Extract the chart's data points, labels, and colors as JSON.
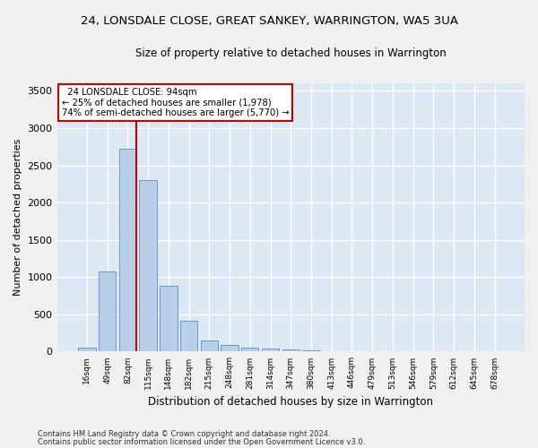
{
  "title_line1": "24, LONSDALE CLOSE, GREAT SANKEY, WARRINGTON, WA5 3UA",
  "title_line2": "Size of property relative to detached houses in Warrington",
  "xlabel": "Distribution of detached houses by size in Warrington",
  "ylabel": "Number of detached properties",
  "bar_color": "#b8cfe8",
  "bar_edge_color": "#6699cc",
  "bg_color": "#dde8f5",
  "grid_color": "#ffffff",
  "fig_bg_color": "#f0f0f0",
  "categories": [
    "16sqm",
    "49sqm",
    "82sqm",
    "115sqm",
    "148sqm",
    "182sqm",
    "215sqm",
    "248sqm",
    "281sqm",
    "314sqm",
    "347sqm",
    "380sqm",
    "413sqm",
    "446sqm",
    "479sqm",
    "513sqm",
    "546sqm",
    "579sqm",
    "612sqm",
    "645sqm",
    "678sqm"
  ],
  "values": [
    50,
    1080,
    2720,
    2300,
    880,
    420,
    155,
    90,
    55,
    45,
    30,
    15,
    5,
    0,
    0,
    0,
    0,
    0,
    0,
    0,
    0
  ],
  "ylim": [
    0,
    3600
  ],
  "yticks": [
    0,
    500,
    1000,
    1500,
    2000,
    2500,
    3000,
    3500
  ],
  "property_label": "24 LONSDALE CLOSE: 94sqm",
  "pct_smaller": "25% of detached houses are smaller (1,978)",
  "pct_larger": "74% of semi-detached houses are larger (5,770)",
  "red_line_bin": 2,
  "annotation_box_color": "#ffffff",
  "annotation_border_color": "#cc0000",
  "footer_line1": "Contains HM Land Registry data © Crown copyright and database right 2024.",
  "footer_line2": "Contains public sector information licensed under the Open Government Licence v3.0."
}
